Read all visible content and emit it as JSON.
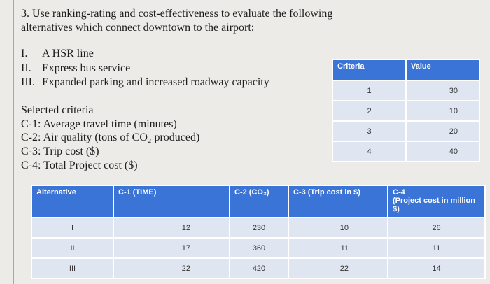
{
  "question": {
    "lines": [
      "3. Use ranking-rating and cost-effectiveness to evaluate the following",
      "alternatives which connect downtown to the airport:"
    ]
  },
  "alternatives": [
    {
      "numeral": "I.",
      "text": "A HSR line"
    },
    {
      "numeral": "II.",
      "text": "Express bus service"
    },
    {
      "numeral": "III.",
      "text": "Expanded parking and increased roadway capacity"
    }
  ],
  "criteria_list": {
    "title": "Selected criteria",
    "items": [
      "C-1: Average travel time (minutes)",
      "C-2: Air quality (tons of CO₂ produced)",
      "C-3: Trip cost ($)",
      "C-4: Total Project cost ($)"
    ]
  },
  "criteria_table": {
    "headers": [
      "Criteria",
      "Value"
    ],
    "rows": [
      [
        1,
        30
      ],
      [
        2,
        10
      ],
      [
        3,
        20
      ],
      [
        4,
        40
      ]
    ]
  },
  "alternatives_table": {
    "headers": [
      "Alternative",
      "C-1 (TIME)",
      "C-2 (CO₂)",
      "C-3 (Trip cost in $)",
      "C-4",
      "(Project cost in million $)"
    ],
    "rows": [
      [
        "I",
        12,
        230,
        10,
        26
      ],
      [
        "II",
        17,
        360,
        11,
        11
      ],
      [
        "III",
        22,
        420,
        22,
        14
      ]
    ]
  }
}
